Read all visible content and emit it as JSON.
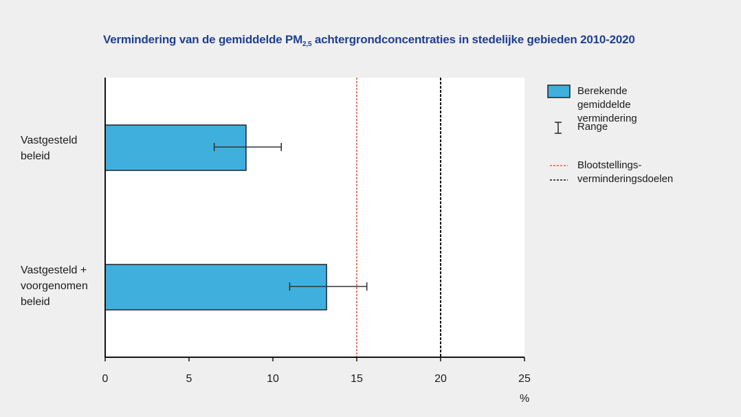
{
  "title_main": "Vermindering van de gemiddelde PM",
  "title_sub": "2,5",
  "title_rest": " achtergrondconcentraties in stedelijke gebieden 2010-2020",
  "chart_data": {
    "type": "bar",
    "orientation": "horizontal",
    "categories": [
      "Vastgesteld\nbeleid",
      "Vastgesteld +\nvoorgenomen\nbeleid"
    ],
    "series": [
      {
        "name": "Berekende gemiddelde vermindering",
        "values": [
          8.4,
          13.2
        ],
        "color": "#3fb0de"
      }
    ],
    "error_ranges": [
      [
        6.5,
        10.5
      ],
      [
        11.0,
        15.6
      ]
    ],
    "error_name": "Range",
    "reference_lines": [
      {
        "value": 15,
        "color": "#e05a4a",
        "style": "dashed"
      },
      {
        "value": 20,
        "color": "#111111",
        "style": "dashed"
      }
    ],
    "reference_label": "Blootstellings-\nverminderingsdoelen",
    "xlim": [
      0,
      25
    ],
    "xticks": [
      "0",
      "5",
      "10",
      "15",
      "20",
      "25"
    ],
    "xtick_values": [
      0,
      5,
      10,
      15,
      20,
      25
    ],
    "xlabel": "%",
    "ylabel": "",
    "grid": false,
    "legend_position": "right"
  },
  "legend": {
    "bar_label": "Berekende gemiddelde\nvermindering",
    "range_label": "Range",
    "target_label": "Blootstellings-\nverminderingsdoelen"
  }
}
